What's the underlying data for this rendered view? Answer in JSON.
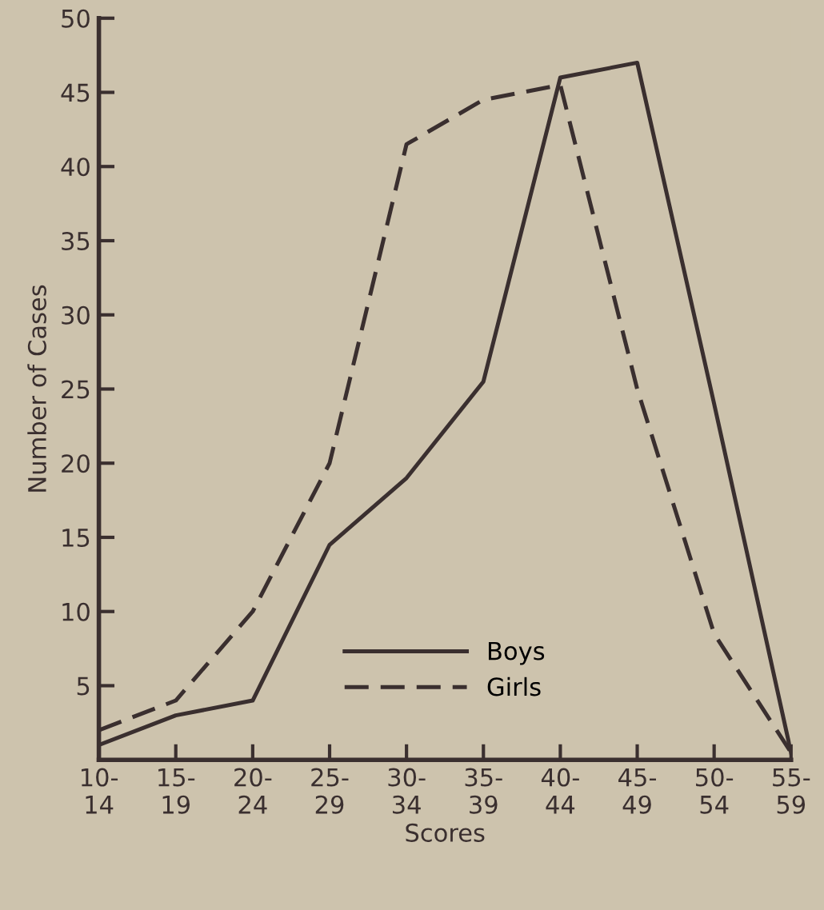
{
  "chart_data": {
    "type": "line",
    "xlabel": "Scores",
    "ylabel": "Number of Cases",
    "categories": [
      "10-\n14",
      "15-\n19",
      "20-\n24",
      "25-\n29",
      "30-\n34",
      "35-\n39",
      "40-\n44",
      "45-\n49",
      "50-\n54",
      "55-\n59"
    ],
    "series": [
      {
        "name": "Boys",
        "color": "#3a2f2f",
        "line_style": "solid",
        "values": [
          1,
          3,
          4,
          14.5,
          19,
          25.5,
          46,
          47,
          24,
          0.5
        ]
      },
      {
        "name": "Girls",
        "color": "#3a2f2f",
        "line_style": "dashed",
        "values": [
          2,
          4,
          10,
          20,
          41.5,
          44.5,
          45.5,
          25,
          8.5,
          0.5
        ]
      }
    ],
    "ylim": [
      0,
      50
    ],
    "yticks": [
      {
        "value": 0,
        "label": null
      },
      5,
      10,
      15,
      20,
      25,
      30,
      35,
      40,
      45,
      50
    ],
    "grid": false,
    "legend": "bottom",
    "marker": "none"
  }
}
